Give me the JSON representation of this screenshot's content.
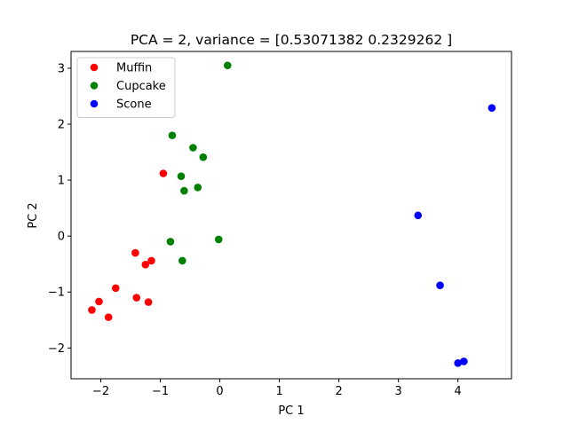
{
  "chart_data": {
    "type": "scatter",
    "title": "PCA = 2, variance = [0.53071382 0.2329262 ]",
    "xlabel": "PC 1",
    "ylabel": "PC 2",
    "xlim": [
      -2.5,
      4.9
    ],
    "ylim": [
      -2.55,
      3.3
    ],
    "xticks": [
      -2,
      -1,
      0,
      1,
      2,
      3,
      4
    ],
    "yticks": [
      -2,
      -1,
      0,
      1,
      2,
      3
    ],
    "grid": false,
    "legend_position": "top-left",
    "series": [
      {
        "name": "Muffin",
        "color": "#ff0000",
        "points": [
          [
            -0.95,
            1.12
          ],
          [
            -1.42,
            -0.3
          ],
          [
            -1.25,
            -0.51
          ],
          [
            -1.15,
            -0.44
          ],
          [
            -1.75,
            -0.93
          ],
          [
            -1.4,
            -1.1
          ],
          [
            -1.2,
            -1.18
          ],
          [
            -2.03,
            -1.17
          ],
          [
            -2.15,
            -1.32
          ],
          [
            -1.87,
            -1.45
          ]
        ]
      },
      {
        "name": "Cupcake",
        "color": "#008000",
        "points": [
          [
            0.13,
            3.05
          ],
          [
            -0.8,
            1.8
          ],
          [
            -0.45,
            1.58
          ],
          [
            -0.28,
            1.41
          ],
          [
            -0.65,
            1.07
          ],
          [
            -0.6,
            0.81
          ],
          [
            -0.37,
            0.87
          ],
          [
            -0.83,
            -0.1
          ],
          [
            -0.02,
            -0.06
          ],
          [
            -0.63,
            -0.44
          ]
        ]
      },
      {
        "name": "Scone",
        "color": "#0000ff",
        "points": [
          [
            4.57,
            2.29
          ],
          [
            3.33,
            0.37
          ],
          [
            3.7,
            -0.88
          ],
          [
            4.1,
            -2.24
          ],
          [
            4.0,
            -2.27
          ]
        ]
      }
    ]
  }
}
